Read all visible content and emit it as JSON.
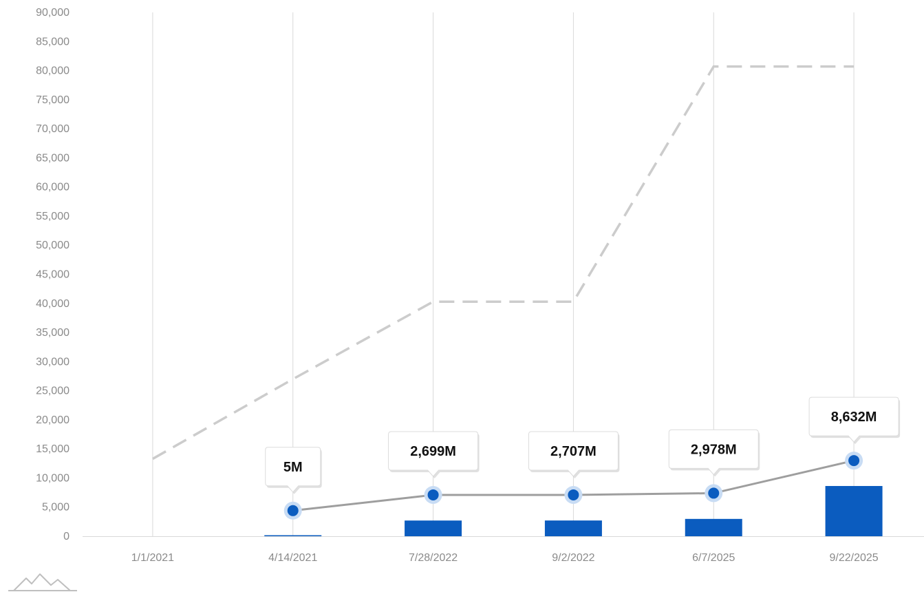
{
  "chart_data": {
    "type": "bar",
    "categories": [
      "1/1/2021",
      "4/14/2021",
      "7/28/2022",
      "9/2/2022",
      "6/7/2025",
      "9/22/2025"
    ],
    "ylim": [
      0,
      90000
    ],
    "yticks": [
      0,
      5000,
      10000,
      15000,
      20000,
      25000,
      30000,
      35000,
      40000,
      45000,
      50000,
      55000,
      60000,
      65000,
      70000,
      75000,
      80000,
      85000,
      90000
    ],
    "ytick_labels": [
      "0",
      "5,000",
      "10,000",
      "15,000",
      "20,000",
      "25,000",
      "30,000",
      "35,000",
      "40,000",
      "45,000",
      "50,000",
      "55,000",
      "60,000",
      "65,000",
      "70,000",
      "75,000",
      "80,000",
      "85,000",
      "90,000"
    ],
    "grid": "vertical",
    "series": [
      {
        "type": "bar",
        "values": [
          0,
          5,
          2699,
          2707,
          2978,
          8632
        ],
        "color": "#0b5cbf"
      },
      {
        "type": "line",
        "values": [
          null,
          4400,
          7100,
          7100,
          7400,
          13000
        ],
        "labels": [
          "",
          "5M",
          "2,699M",
          "2,707M",
          "2,978M",
          "8,632M"
        ],
        "line_color": "#9e9e9e",
        "marker_color": "#0b5cbf",
        "marker_halo": "#c8dcf4"
      },
      {
        "type": "line",
        "style": "dashed",
        "values": [
          13300,
          27000,
          40300,
          40300,
          80700,
          80700
        ],
        "color": "#cccccc"
      }
    ]
  },
  "footer": {
    "logo_icon": "mountain-logo-icon"
  }
}
